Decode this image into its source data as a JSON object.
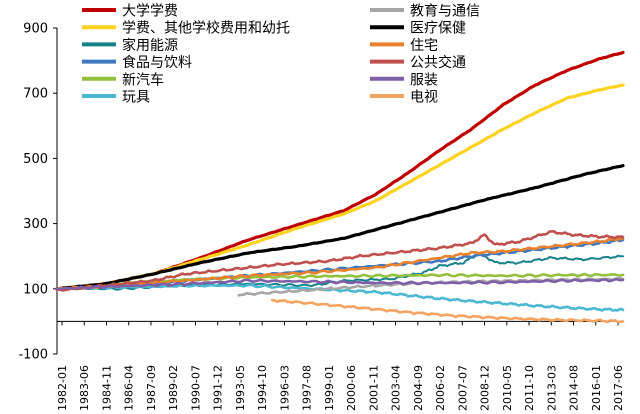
{
  "chart_data": {
    "type": "line",
    "title": "",
    "xlabel": "",
    "ylabel": "",
    "ylim": [
      -100,
      900
    ],
    "y_ticks": [
      -100,
      100,
      300,
      500,
      700,
      900
    ],
    "x_range": [
      1982.0,
      2017.5
    ],
    "x_tick_labels": [
      "1982-01",
      "1983-06",
      "1984-11",
      "1986-04",
      "1987-09",
      "1989-02",
      "1990-07",
      "1991-12",
      "1993-05",
      "1994-10",
      "1996-03",
      "1997-08",
      "1999-01",
      "2000-06",
      "2001-11",
      "2003-04",
      "2004-09",
      "2006-02",
      "2007-07",
      "2008-12",
      "2010-05",
      "2011-10",
      "2013-03",
      "2014-08",
      "2016-01",
      "2017-06"
    ],
    "legend_position": "top",
    "series": [
      {
        "name": "大学学费",
        "color": "#c00000",
        "width": 3.2,
        "x": [
          1982,
          1985,
          1988,
          1991,
          1994,
          1997,
          2000,
          2002,
          2004,
          2006,
          2008,
          2010,
          2012,
          2014,
          2016,
          2017.5
        ],
        "y": [
          100,
          115,
          145,
          195,
          250,
          295,
          340,
          390,
          455,
          525,
          590,
          665,
          725,
          770,
          805,
          825
        ]
      },
      {
        "name": "学费、其他学校费用和幼托",
        "color": "#ffd21f",
        "width": 3.2,
        "x": [
          1982,
          1985,
          1988,
          1991,
          1994,
          1997,
          2000,
          2002,
          2004,
          2006,
          2008,
          2010,
          2012,
          2014,
          2016,
          2017.5
        ],
        "y": [
          100,
          115,
          145,
          190,
          235,
          285,
          330,
          370,
          425,
          480,
          535,
          590,
          640,
          685,
          710,
          725
        ]
      },
      {
        "name": "家用能源",
        "color": "#17818c",
        "width": 2,
        "x": [
          1982,
          1986,
          1990,
          1994,
          1998,
          2000,
          2003,
          2005,
          2006,
          2007.5,
          2008.5,
          2009.5,
          2011,
          2013,
          2015,
          2017.5
        ],
        "y": [
          100,
          100,
          110,
          115,
          110,
          125,
          130,
          150,
          170,
          180,
          210,
          180,
          180,
          195,
          190,
          200
        ]
      },
      {
        "name": "食品与饮料",
        "color": "#3f78bf",
        "width": 2.6,
        "x": [
          1982,
          1986,
          1990,
          1994,
          1998,
          2002,
          2006,
          2008,
          2010,
          2012,
          2014,
          2016,
          2017.5
        ],
        "y": [
          100,
          110,
          125,
          140,
          155,
          170,
          185,
          200,
          210,
          220,
          230,
          240,
          250
        ]
      },
      {
        "name": "新汽车",
        "color": "#93c13e",
        "width": 2.6,
        "x": [
          1982,
          1986,
          1990,
          1994,
          1998,
          2002,
          2006,
          2010,
          2014,
          2017.5
        ],
        "y": [
          100,
          115,
          128,
          135,
          138,
          140,
          142,
          140,
          142,
          143
        ]
      },
      {
        "name": "玩具",
        "color": "#4bb8d2",
        "width": 2.6,
        "x": [
          1982,
          1986,
          1990,
          1994,
          1998,
          2000,
          2002,
          2004,
          2006,
          2008,
          2010,
          2012,
          2014,
          2016,
          2017.5
        ],
        "y": [
          100,
          105,
          110,
          110,
          100,
          95,
          90,
          80,
          70,
          62,
          55,
          48,
          42,
          37,
          35
        ]
      },
      {
        "name": "教育与通信",
        "color": "#a6a6a6",
        "width": 2.6,
        "x": [
          1993.4,
          1996,
          1999,
          2002,
          2005,
          2008,
          2011,
          2014,
          2017.5
        ],
        "y": [
          82,
          90,
          100,
          110,
          118,
          122,
          125,
          128,
          130
        ]
      },
      {
        "name": "医疗保健",
        "color": "#000000",
        "width": 3.2,
        "x": [
          1982,
          1985,
          1988,
          1991,
          1994,
          1997,
          2000,
          2003,
          2006,
          2009,
          2012,
          2015,
          2017.5
        ],
        "y": [
          100,
          115,
          145,
          180,
          210,
          230,
          255,
          295,
          335,
          375,
          410,
          450,
          478
        ]
      },
      {
        "name": "住宅",
        "color": "#e8822e",
        "width": 2.6,
        "x": [
          1982,
          1986,
          1990,
          1994,
          1998,
          2002,
          2006,
          2008,
          2010,
          2012,
          2014,
          2016,
          2017.5
        ],
        "y": [
          100,
          110,
          125,
          140,
          150,
          165,
          195,
          210,
          215,
          225,
          235,
          245,
          255
        ]
      },
      {
        "name": "公共交通",
        "color": "#c0504d",
        "width": 2.6,
        "x": [
          1982,
          1985,
          1988,
          1990,
          1993,
          1996,
          1999,
          2001,
          2004,
          2006,
          2008,
          2008.8,
          2009.5,
          2011,
          2013,
          2014.5,
          2016,
          2017.5
        ],
        "y": [
          95,
          110,
          125,
          145,
          160,
          175,
          185,
          200,
          215,
          225,
          240,
          265,
          235,
          245,
          275,
          265,
          260,
          258
        ]
      },
      {
        "name": "服装",
        "color": "#7f5fa8",
        "width": 2.6,
        "x": [
          1982,
          1986,
          1990,
          1994,
          1998,
          2002,
          2006,
          2010,
          2014,
          2017.5
        ],
        "y": [
          100,
          108,
          115,
          125,
          122,
          118,
          118,
          120,
          125,
          127
        ]
      },
      {
        "name": "电视",
        "color": "#f4a460",
        "width": 2.6,
        "x": [
          1995.5,
          1998,
          2001,
          2004,
          2007,
          2010,
          2013,
          2016,
          2017.5
        ],
        "y": [
          65,
          55,
          42,
          28,
          17,
          10,
          5,
          2,
          0
        ]
      }
    ]
  }
}
